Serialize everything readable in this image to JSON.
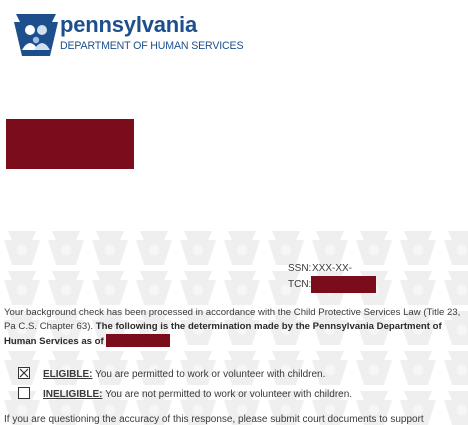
{
  "header": {
    "brand_name": "pennsylvania",
    "department": "DEPARTMENT OF HUMAN SERVICES",
    "logo_icon": "keystone-family-logo-icon",
    "brand_color": "#1d4f8c"
  },
  "identifiers": {
    "ssn_label": "SSN:",
    "ssn_value": "XXX-XX-",
    "tcn_label": "TCN:"
  },
  "body": {
    "intro": "Your background check has been processed in accordance with the Child Protective Services Law (Title 23, Pa C.S. Chapter 63).",
    "determination": "The following is the determination made by the Pennsylvania Department of Human Services as of"
  },
  "options": {
    "eligible_label": "ELIGIBLE:",
    "eligible_text": "You are permitted to work or volunteer with children.",
    "eligible_checked": true,
    "ineligible_label": "INELIGIBLE:",
    "ineligible_text": "You are not permitted to work or volunteer with children.",
    "ineligible_checked": false
  },
  "footer": {
    "text": "If you are questioning the accuracy of this response, please submit court documents to support"
  },
  "colors": {
    "redaction": "#7b0c1b",
    "watermark": "#eeeeee"
  }
}
